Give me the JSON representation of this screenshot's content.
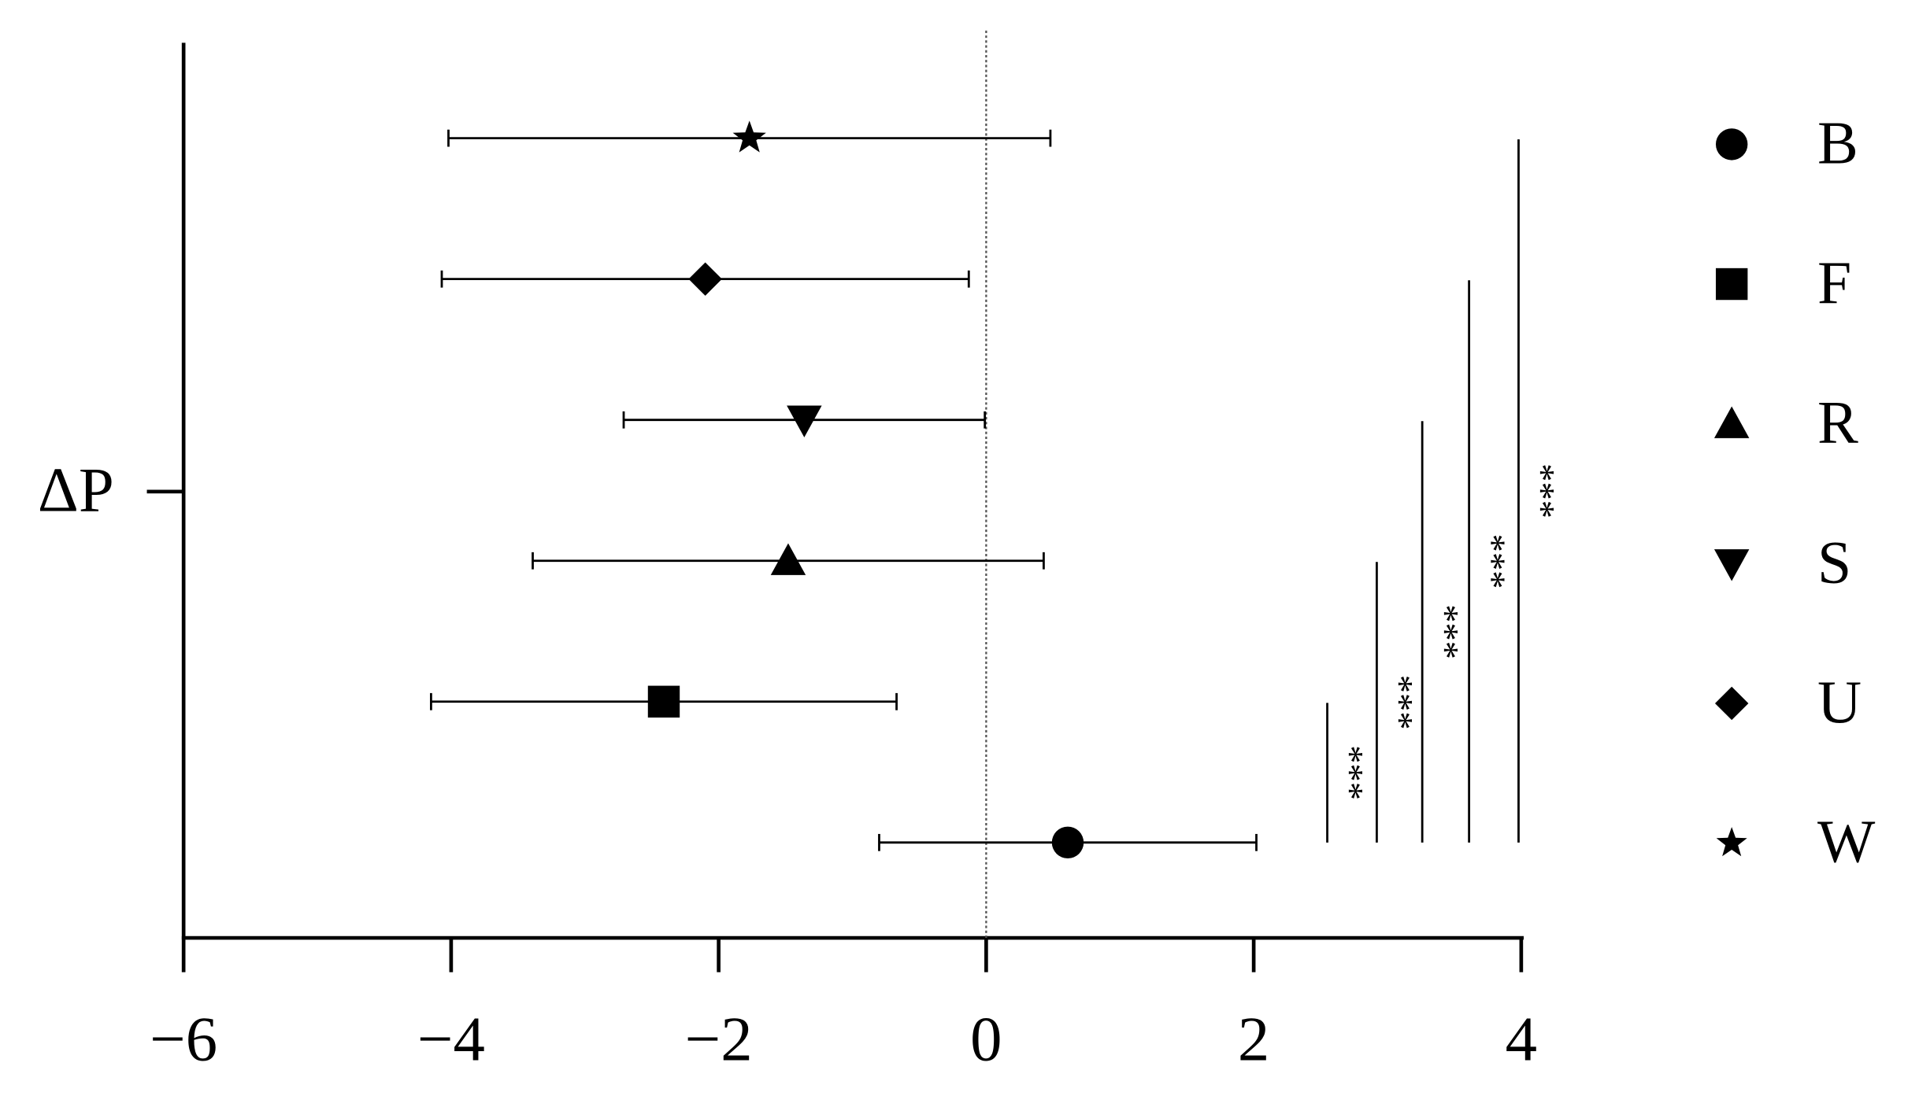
{
  "chart_data": {
    "type": "dot-errorbar",
    "categories": [
      "ΔP"
    ],
    "series": [
      {
        "name": "B",
        "marker": "circle",
        "color": "#000000",
        "values": [
          0.61
        ],
        "errors": [
          1.41
        ]
      },
      {
        "name": "F",
        "marker": "square",
        "color": "#000000",
        "values": [
          -2.41
        ],
        "errors": [
          1.74
        ]
      },
      {
        "name": "R",
        "marker": "triangle-up",
        "color": "#000000",
        "values": [
          -1.48
        ],
        "errors": [
          1.91
        ]
      },
      {
        "name": "S",
        "marker": "triangle-down",
        "color": "#000000",
        "values": [
          -1.36
        ],
        "errors": [
          1.35
        ]
      },
      {
        "name": "U",
        "marker": "diamond",
        "color": "#000000",
        "values": [
          -2.1
        ],
        "errors": [
          1.97
        ]
      },
      {
        "name": "W",
        "marker": "star",
        "color": "#000000",
        "values": [
          -1.77
        ],
        "errors": [
          2.25
        ]
      }
    ],
    "xlim": [
      -6,
      4
    ],
    "xticks": [
      {
        "value": -6,
        "label": "−6"
      },
      {
        "value": -4,
        "label": "−4"
      },
      {
        "value": -2,
        "label": "−2"
      },
      0,
      2,
      4
    ],
    "zero_line": true,
    "annotations": [
      {
        "text": "***",
        "x": 2.55
      },
      {
        "text": "***",
        "x": 2.92
      },
      {
        "text": "***",
        "x": 3.26
      },
      {
        "text": "***",
        "x": 3.61
      },
      {
        "text": "***",
        "x": 3.98
      }
    ],
    "legend": "right"
  }
}
